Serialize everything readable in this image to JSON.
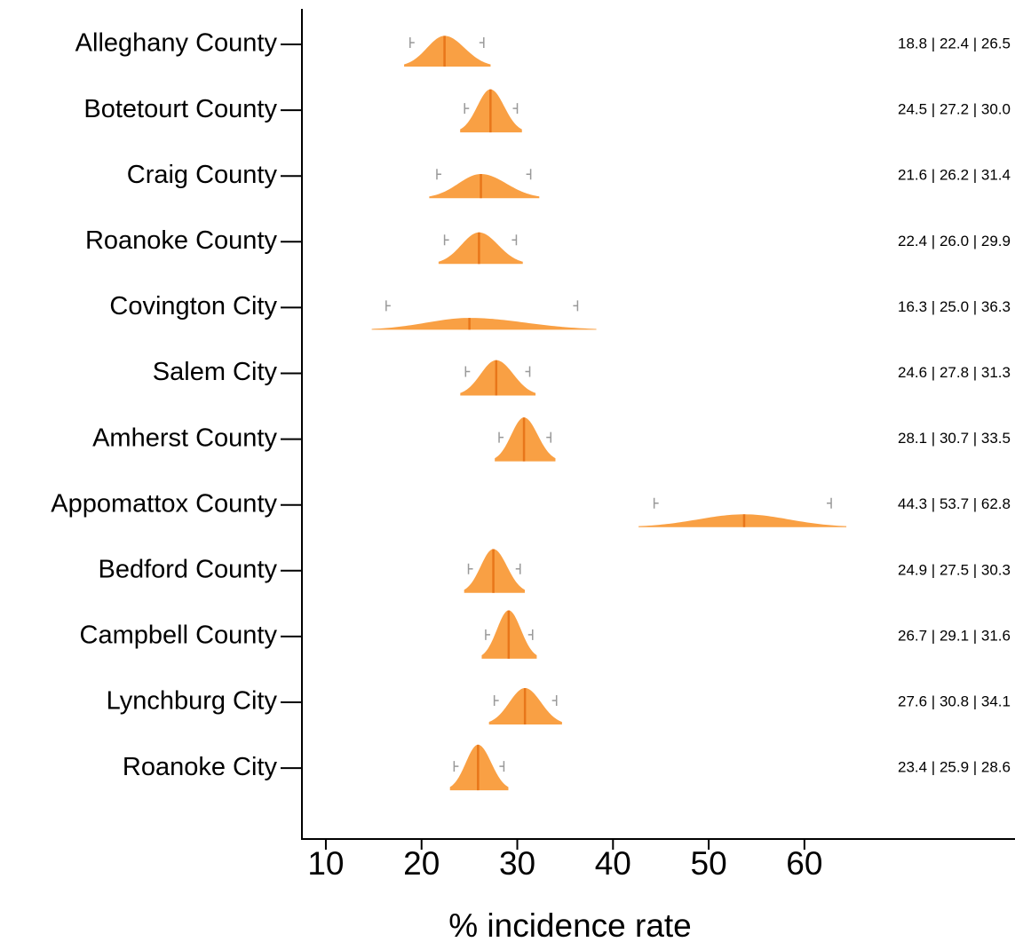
{
  "chart_data": {
    "type": "density",
    "categories": [
      "Alleghany County",
      "Botetourt County",
      "Craig County",
      "Roanoke County",
      "Covington City",
      "Salem City",
      "Amherst County",
      "Appomattox County",
      "Bedford County",
      "Campbell County",
      "Lynchburg City",
      "Roanoke City"
    ],
    "low": [
      18.8,
      24.5,
      21.6,
      22.4,
      16.3,
      24.6,
      28.1,
      44.3,
      24.9,
      26.7,
      27.6,
      23.4
    ],
    "median": [
      22.4,
      27.2,
      26.2,
      26.0,
      25.0,
      27.8,
      30.7,
      53.7,
      27.5,
      29.1,
      30.8,
      25.9
    ],
    "high": [
      26.5,
      30.0,
      31.4,
      29.9,
      36.3,
      31.3,
      33.5,
      62.8,
      30.3,
      31.6,
      34.1,
      28.6
    ],
    "value_labels": [
      "18.8 | 22.4 | 26.5",
      "24.5 | 27.2 | 30.0",
      "21.6 | 26.2 | 31.4",
      "22.4 | 26.0 | 29.9",
      "16.3 | 25.0 | 36.3",
      "24.6 | 27.8 | 31.3",
      "28.1 | 30.7 | 33.5",
      "44.3 | 53.7 | 62.8",
      "24.9 | 27.5 | 30.3",
      "26.7 | 29.1 | 31.6",
      "27.6 | 30.8 | 34.1",
      "23.4 | 25.9 | 28.6"
    ],
    "xlabel": "% incidence rate",
    "xlim": [
      7.5,
      82
    ],
    "xticks": [
      10,
      20,
      30,
      40,
      50,
      60
    ],
    "color": "#f99b3a",
    "median_color": "#e8761a",
    "interval_color": "#999999"
  }
}
